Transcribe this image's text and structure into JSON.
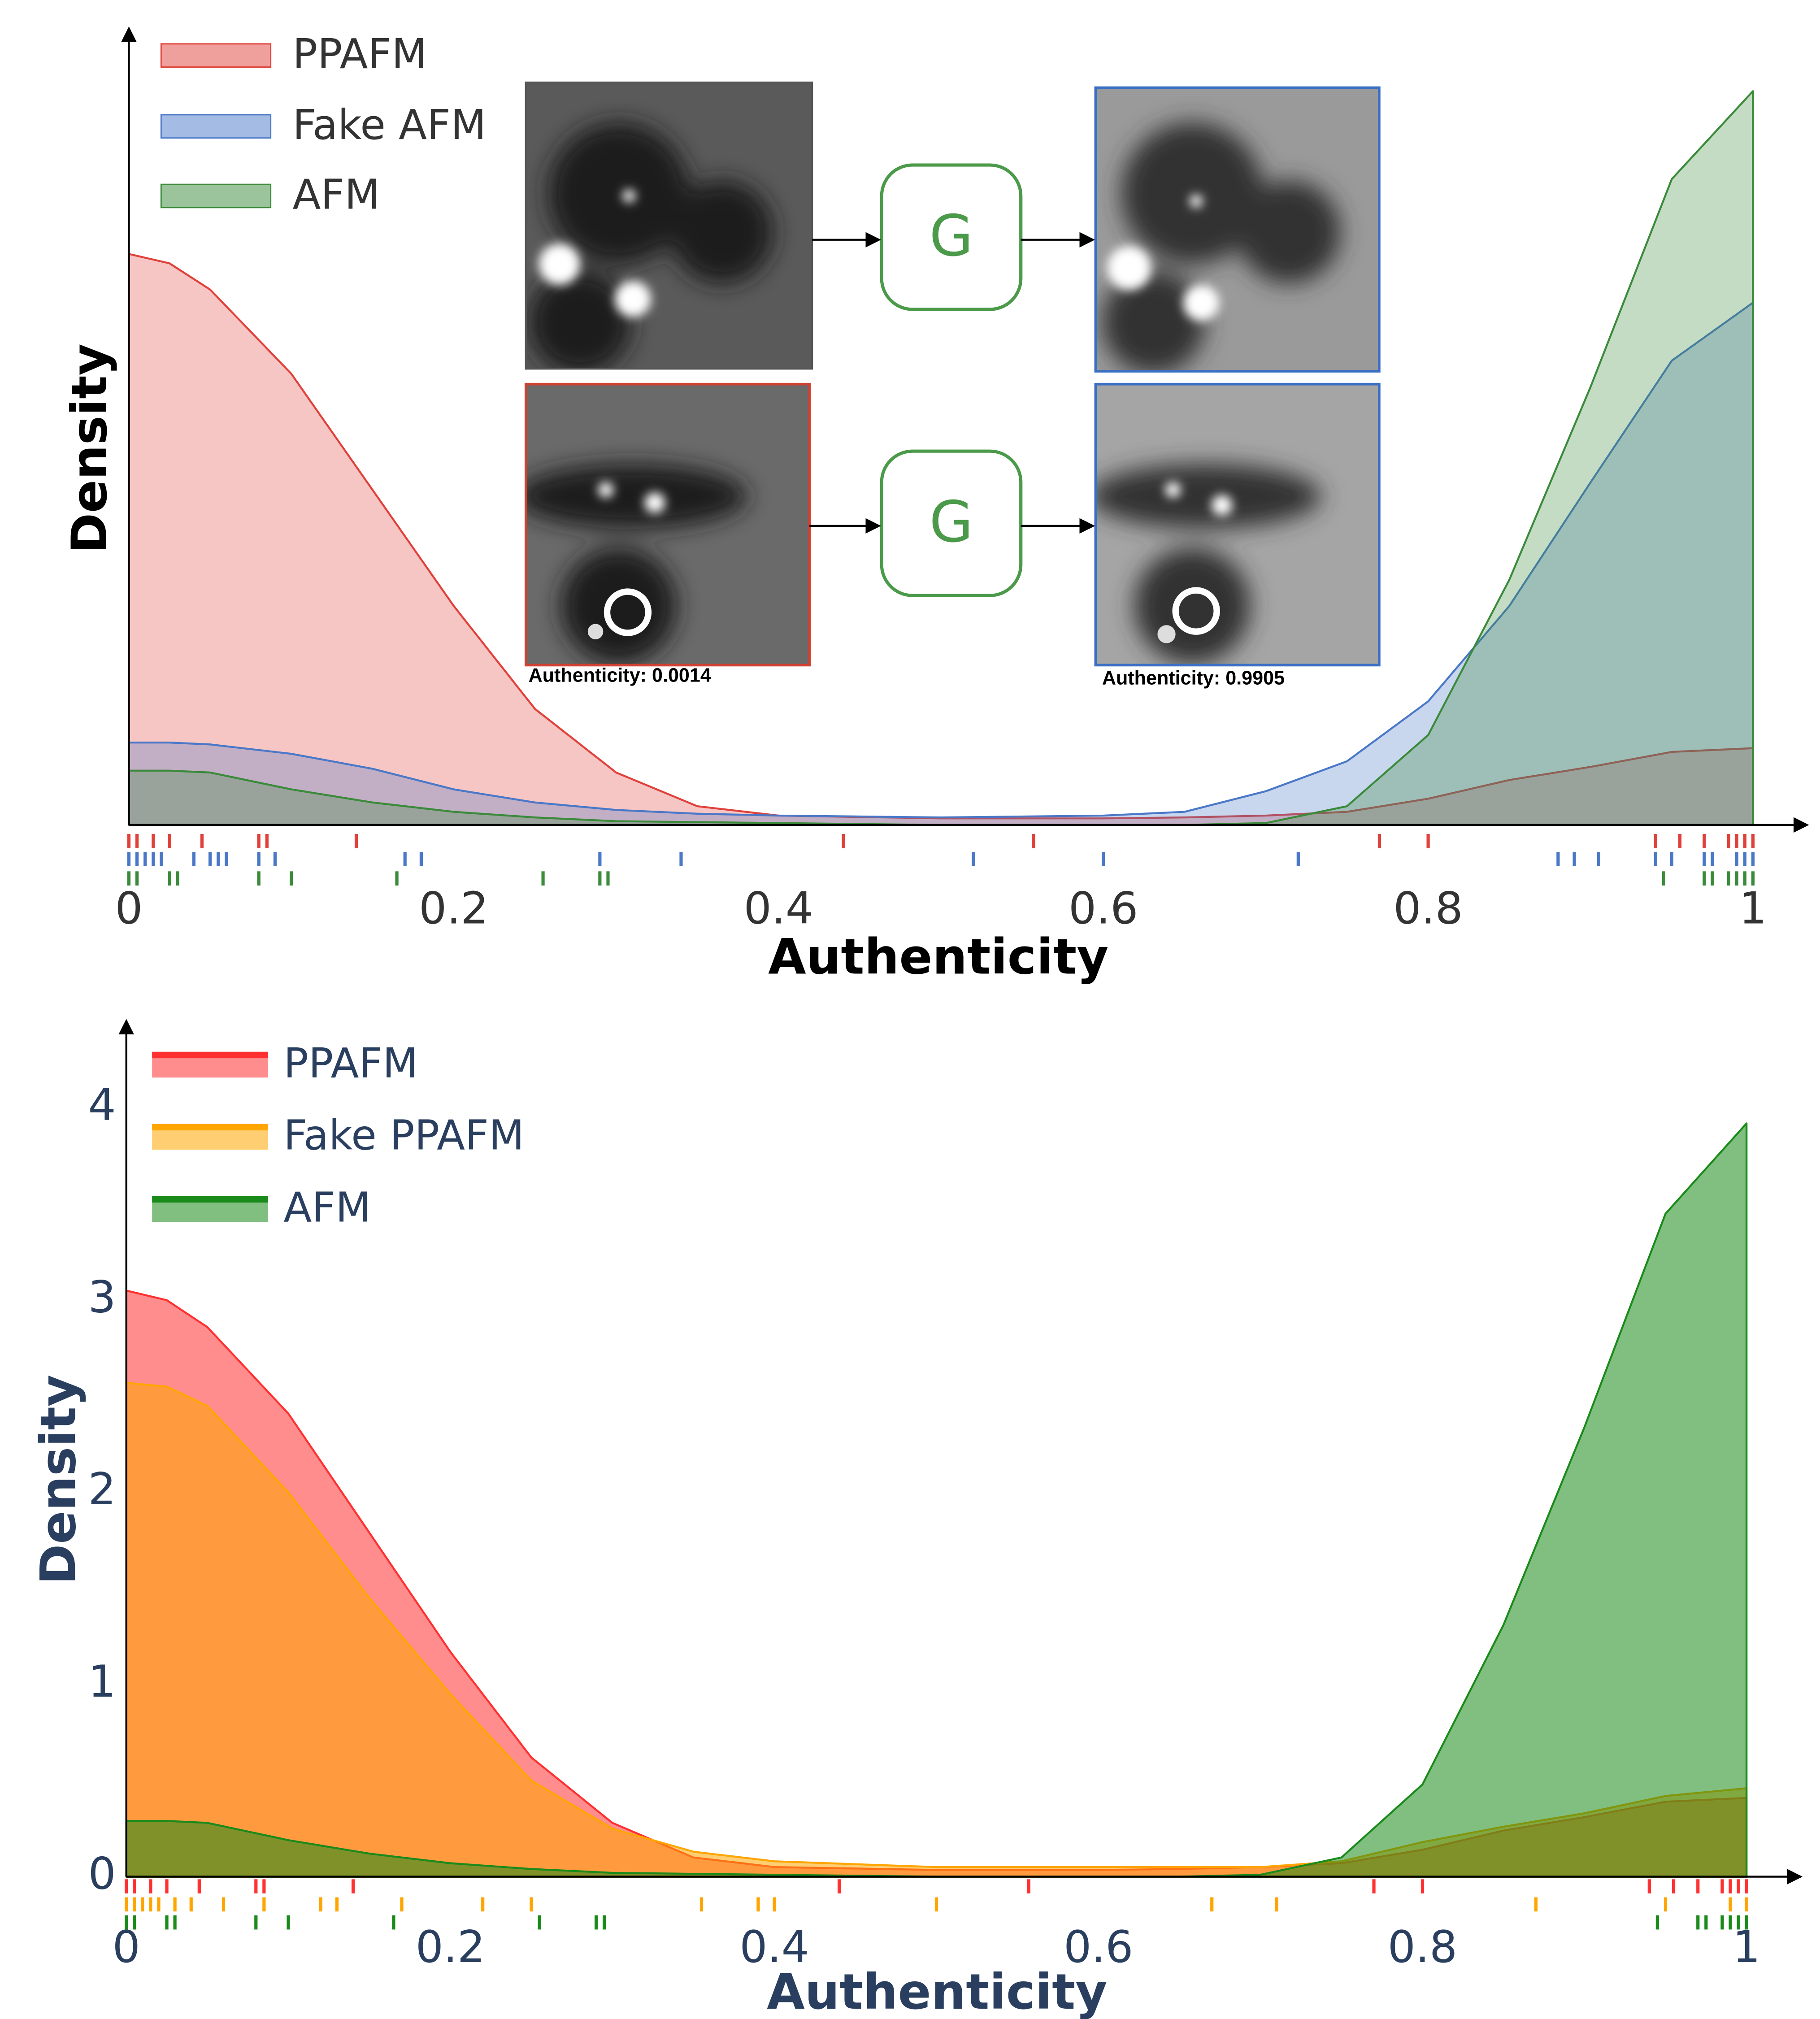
{
  "chart_data": [
    {
      "type": "area",
      "x_label": "Authenticity",
      "y_label": "Density",
      "x": [
        0,
        0.025,
        0.05,
        0.1,
        0.15,
        0.2,
        0.25,
        0.3,
        0.35,
        0.4,
        0.5,
        0.6,
        0.65,
        0.7,
        0.75,
        0.8,
        0.85,
        0.9,
        0.95,
        1
      ],
      "series": [
        {
          "name": "PPAFM",
          "color": "#e0413a",
          "values": [
            3.05,
            3.0,
            2.86,
            2.41,
            1.79,
            1.17,
            0.62,
            0.28,
            0.1,
            0.05,
            0.035,
            0.035,
            0.04,
            0.05,
            0.07,
            0.14,
            0.24,
            0.31,
            0.39,
            0.41
          ],
          "rug": [
            0,
            0.005,
            0.015,
            0.025,
            0.045,
            0.08,
            0.085,
            0.14,
            0.44,
            0.557,
            0.77,
            0.8,
            0.94,
            0.955,
            0.97,
            0.985,
            0.99,
            0.995,
            1
          ]
        },
        {
          "name": "Fake AFM",
          "color": "#4a78c8",
          "values": [
            0.44,
            0.44,
            0.43,
            0.38,
            0.3,
            0.19,
            0.12,
            0.08,
            0.06,
            0.05,
            0.04,
            0.05,
            0.07,
            0.18,
            0.34,
            0.66,
            1.17,
            1.83,
            2.48,
            2.79
          ],
          "rug": [
            0,
            0.005,
            0.01,
            0.015,
            0.02,
            0.04,
            0.05,
            0.055,
            0.06,
            0.08,
            0.09,
            0.17,
            0.18,
            0.29,
            0.34,
            0.52,
            0.6,
            0.72,
            0.88,
            0.89,
            0.905,
            0.94,
            0.95,
            0.97,
            0.975,
            0.99,
            0.995,
            1
          ]
        },
        {
          "name": "AFM",
          "color": "#3a8a3a",
          "values": [
            0.29,
            0.29,
            0.28,
            0.19,
            0.12,
            0.07,
            0.04,
            0.02,
            0.015,
            0.01,
            0,
            0,
            0,
            0.01,
            0.1,
            0.48,
            1.31,
            2.34,
            3.45,
            3.92
          ],
          "rug": [
            0,
            0.005,
            0.025,
            0.03,
            0.08,
            0.1,
            0.165,
            0.255,
            0.29,
            0.295,
            0.945,
            0.97,
            0.975,
            0.985,
            0.99,
            0.995,
            1
          ]
        }
      ],
      "xlim": [
        0,
        1
      ],
      "xticks": [
        0,
        0.2,
        0.4,
        0.6,
        0.8,
        1
      ],
      "ylim": [
        0,
        4.2
      ],
      "annotations": [
        "G",
        "G",
        "Authenticity: 0.0014",
        "Authenticity: 0.9905"
      ]
    },
    {
      "type": "area",
      "x_label": "Authenticity",
      "y_label": "Density",
      "x": [
        0,
        0.025,
        0.05,
        0.1,
        0.15,
        0.2,
        0.25,
        0.3,
        0.35,
        0.4,
        0.5,
        0.6,
        0.65,
        0.7,
        0.75,
        0.8,
        0.85,
        0.9,
        0.95,
        1
      ],
      "series": [
        {
          "name": "PPAFM",
          "color": "#ff3030",
          "values": [
            3.05,
            3.0,
            2.86,
            2.41,
            1.79,
            1.17,
            0.62,
            0.28,
            0.1,
            0.05,
            0.035,
            0.035,
            0.04,
            0.05,
            0.07,
            0.14,
            0.24,
            0.31,
            0.39,
            0.41
          ],
          "rug": [
            0,
            0.005,
            0.015,
            0.025,
            0.045,
            0.08,
            0.085,
            0.14,
            0.44,
            0.557,
            0.77,
            0.8,
            0.94,
            0.955,
            0.97,
            0.985,
            0.99,
            0.995,
            1
          ]
        },
        {
          "name": "Fake PPAFM",
          "color": "#ffa500",
          "values": [
            2.57,
            2.55,
            2.45,
            2.0,
            1.45,
            0.95,
            0.5,
            0.25,
            0.13,
            0.08,
            0.05,
            0.05,
            0.05,
            0.05,
            0.08,
            0.18,
            0.26,
            0.33,
            0.42,
            0.46
          ],
          "rug": [
            0,
            0.005,
            0.01,
            0.015,
            0.02,
            0.03,
            0.04,
            0.06,
            0.085,
            0.12,
            0.13,
            0.17,
            0.22,
            0.25,
            0.355,
            0.39,
            0.4,
            0.5,
            0.67,
            0.71,
            0.87,
            0.95,
            0.99,
            1
          ]
        },
        {
          "name": "AFM",
          "color": "#1a8a1a",
          "values": [
            0.29,
            0.29,
            0.28,
            0.19,
            0.12,
            0.07,
            0.04,
            0.02,
            0.015,
            0.01,
            0,
            0,
            0,
            0.01,
            0.1,
            0.48,
            1.31,
            2.34,
            3.45,
            3.92
          ],
          "rug": [
            0,
            0.005,
            0.025,
            0.03,
            0.08,
            0.1,
            0.165,
            0.255,
            0.29,
            0.295,
            0.945,
            0.97,
            0.975,
            0.985,
            0.99,
            0.995,
            1
          ]
        }
      ],
      "xlim": [
        0,
        1
      ],
      "xticks": [
        0,
        0.2,
        0.4,
        0.6,
        0.8,
        1
      ],
      "ylim": [
        0,
        4.4
      ],
      "yticks": [
        0,
        1,
        2,
        3,
        4
      ]
    }
  ]
}
